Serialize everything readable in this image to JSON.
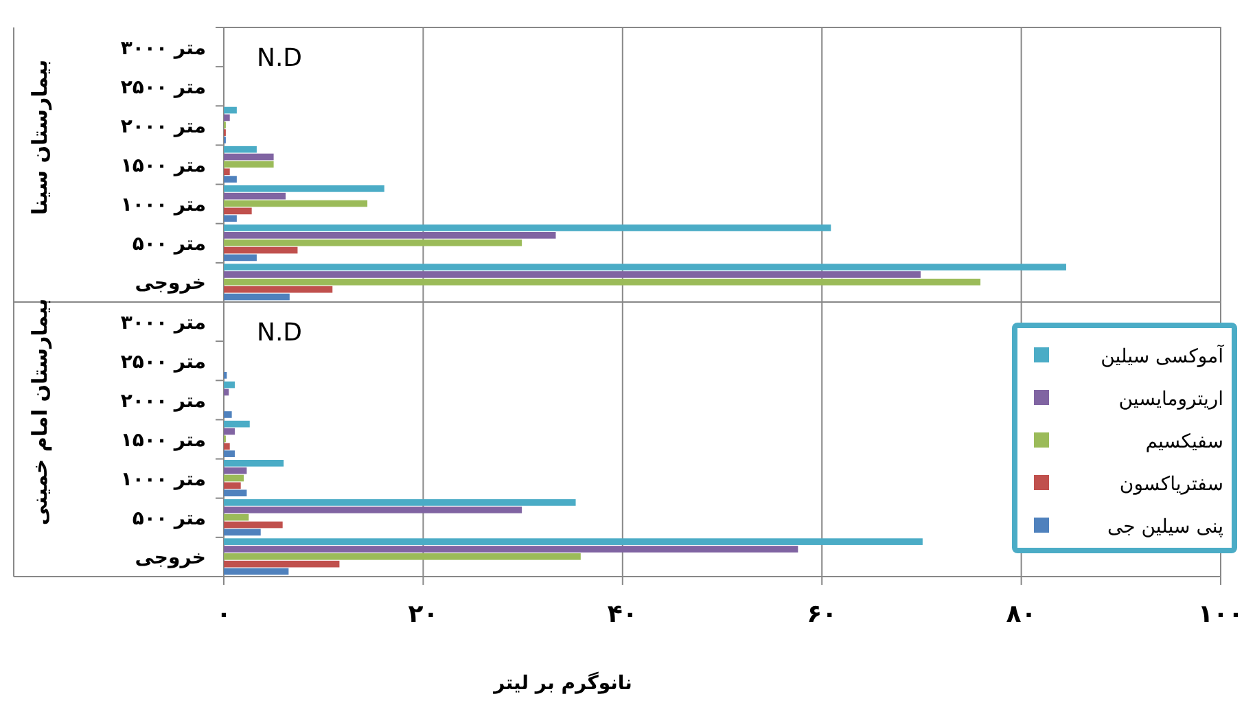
{
  "chart_data": [
    {
      "type": "bar",
      "orientation": "horizontal",
      "ylabel": "بیمارستان سینا",
      "categories": [
        "۳۰۰۰ متر",
        "۲۵۰۰ متر",
        "۲۰۰۰ متر",
        "۱۵۰۰ متر",
        "۱۰۰۰ متر",
        "۵۰۰ متر",
        "خروجی"
      ],
      "series": [
        {
          "color": "#4bacc6",
          "values": [
            null,
            null,
            1.3,
            3.3,
            16.1,
            60.9,
            84.5
          ]
        },
        {
          "color": "#8064a2",
          "values": [
            null,
            null,
            0.6,
            5.0,
            6.2,
            33.3,
            69.9
          ]
        },
        {
          "color": "#9bbb59",
          "values": [
            null,
            null,
            0.2,
            5.0,
            14.4,
            29.9,
            75.9
          ]
        },
        {
          "color": "#c0504d",
          "values": [
            null,
            null,
            0.2,
            0.6,
            2.8,
            7.4,
            10.9
          ]
        },
        {
          "color": "#4f81bd",
          "values": [
            null,
            null,
            0.2,
            1.3,
            1.3,
            3.3,
            6.6
          ]
        }
      ],
      "xlim": [
        0,
        100
      ],
      "xticks": [
        0,
        20,
        40,
        60,
        80,
        100
      ],
      "tick_labels": "y",
      "grid": "x",
      "annotations": [
        "N.D"
      ]
    },
    {
      "type": "bar",
      "orientation": "horizontal",
      "ylabel": "بیمارستان امام خمینی",
      "xlabel": "نانوگرم بر لیتر",
      "categories": [
        "۳۰۰۰ متر",
        "۲۵۰۰ متر",
        "۲۰۰۰ متر",
        "۱۵۰۰ متر",
        "۱۰۰۰ متر",
        "۵۰۰ متر",
        "خروجی"
      ],
      "series": [
        {
          "name": "آموکسی سیلین",
          "color": "#4bacc6",
          "values": [
            null,
            null,
            1.1,
            2.6,
            6.0,
            35.3,
            70.1
          ]
        },
        {
          "name": "اریترومایسین",
          "color": "#8064a2",
          "values": [
            null,
            null,
            0.5,
            1.1,
            2.3,
            29.9,
            57.6
          ]
        },
        {
          "name": "سفیکسیم",
          "color": "#9bbb59",
          "values": [
            null,
            null,
            null,
            0.2,
            2.0,
            2.5,
            35.8
          ]
        },
        {
          "name": "سفتریاکسون",
          "color": "#c0504d",
          "values": [
            null,
            null,
            null,
            0.6,
            1.7,
            5.9,
            11.6
          ]
        },
        {
          "name": "پنی سیلین جی",
          "color": "#4f81bd",
          "values": [
            null,
            0.3,
            0.8,
            1.1,
            2.3,
            3.7,
            6.5
          ]
        }
      ],
      "xlim": [
        0,
        100
      ],
      "xticks": [
        {
          "value": 0,
          "label": "۰"
        },
        {
          "value": 20,
          "label": "۲۰"
        },
        {
          "value": 40,
          "label": "۴۰"
        },
        {
          "value": 60,
          "label": "۶۰"
        },
        {
          "value": 80,
          "label": "۸۰"
        },
        {
          "value": 100,
          "label": "۱۰۰"
        }
      ],
      "grid": "x",
      "legend": "right",
      "annotations": [
        "N.D"
      ]
    }
  ]
}
